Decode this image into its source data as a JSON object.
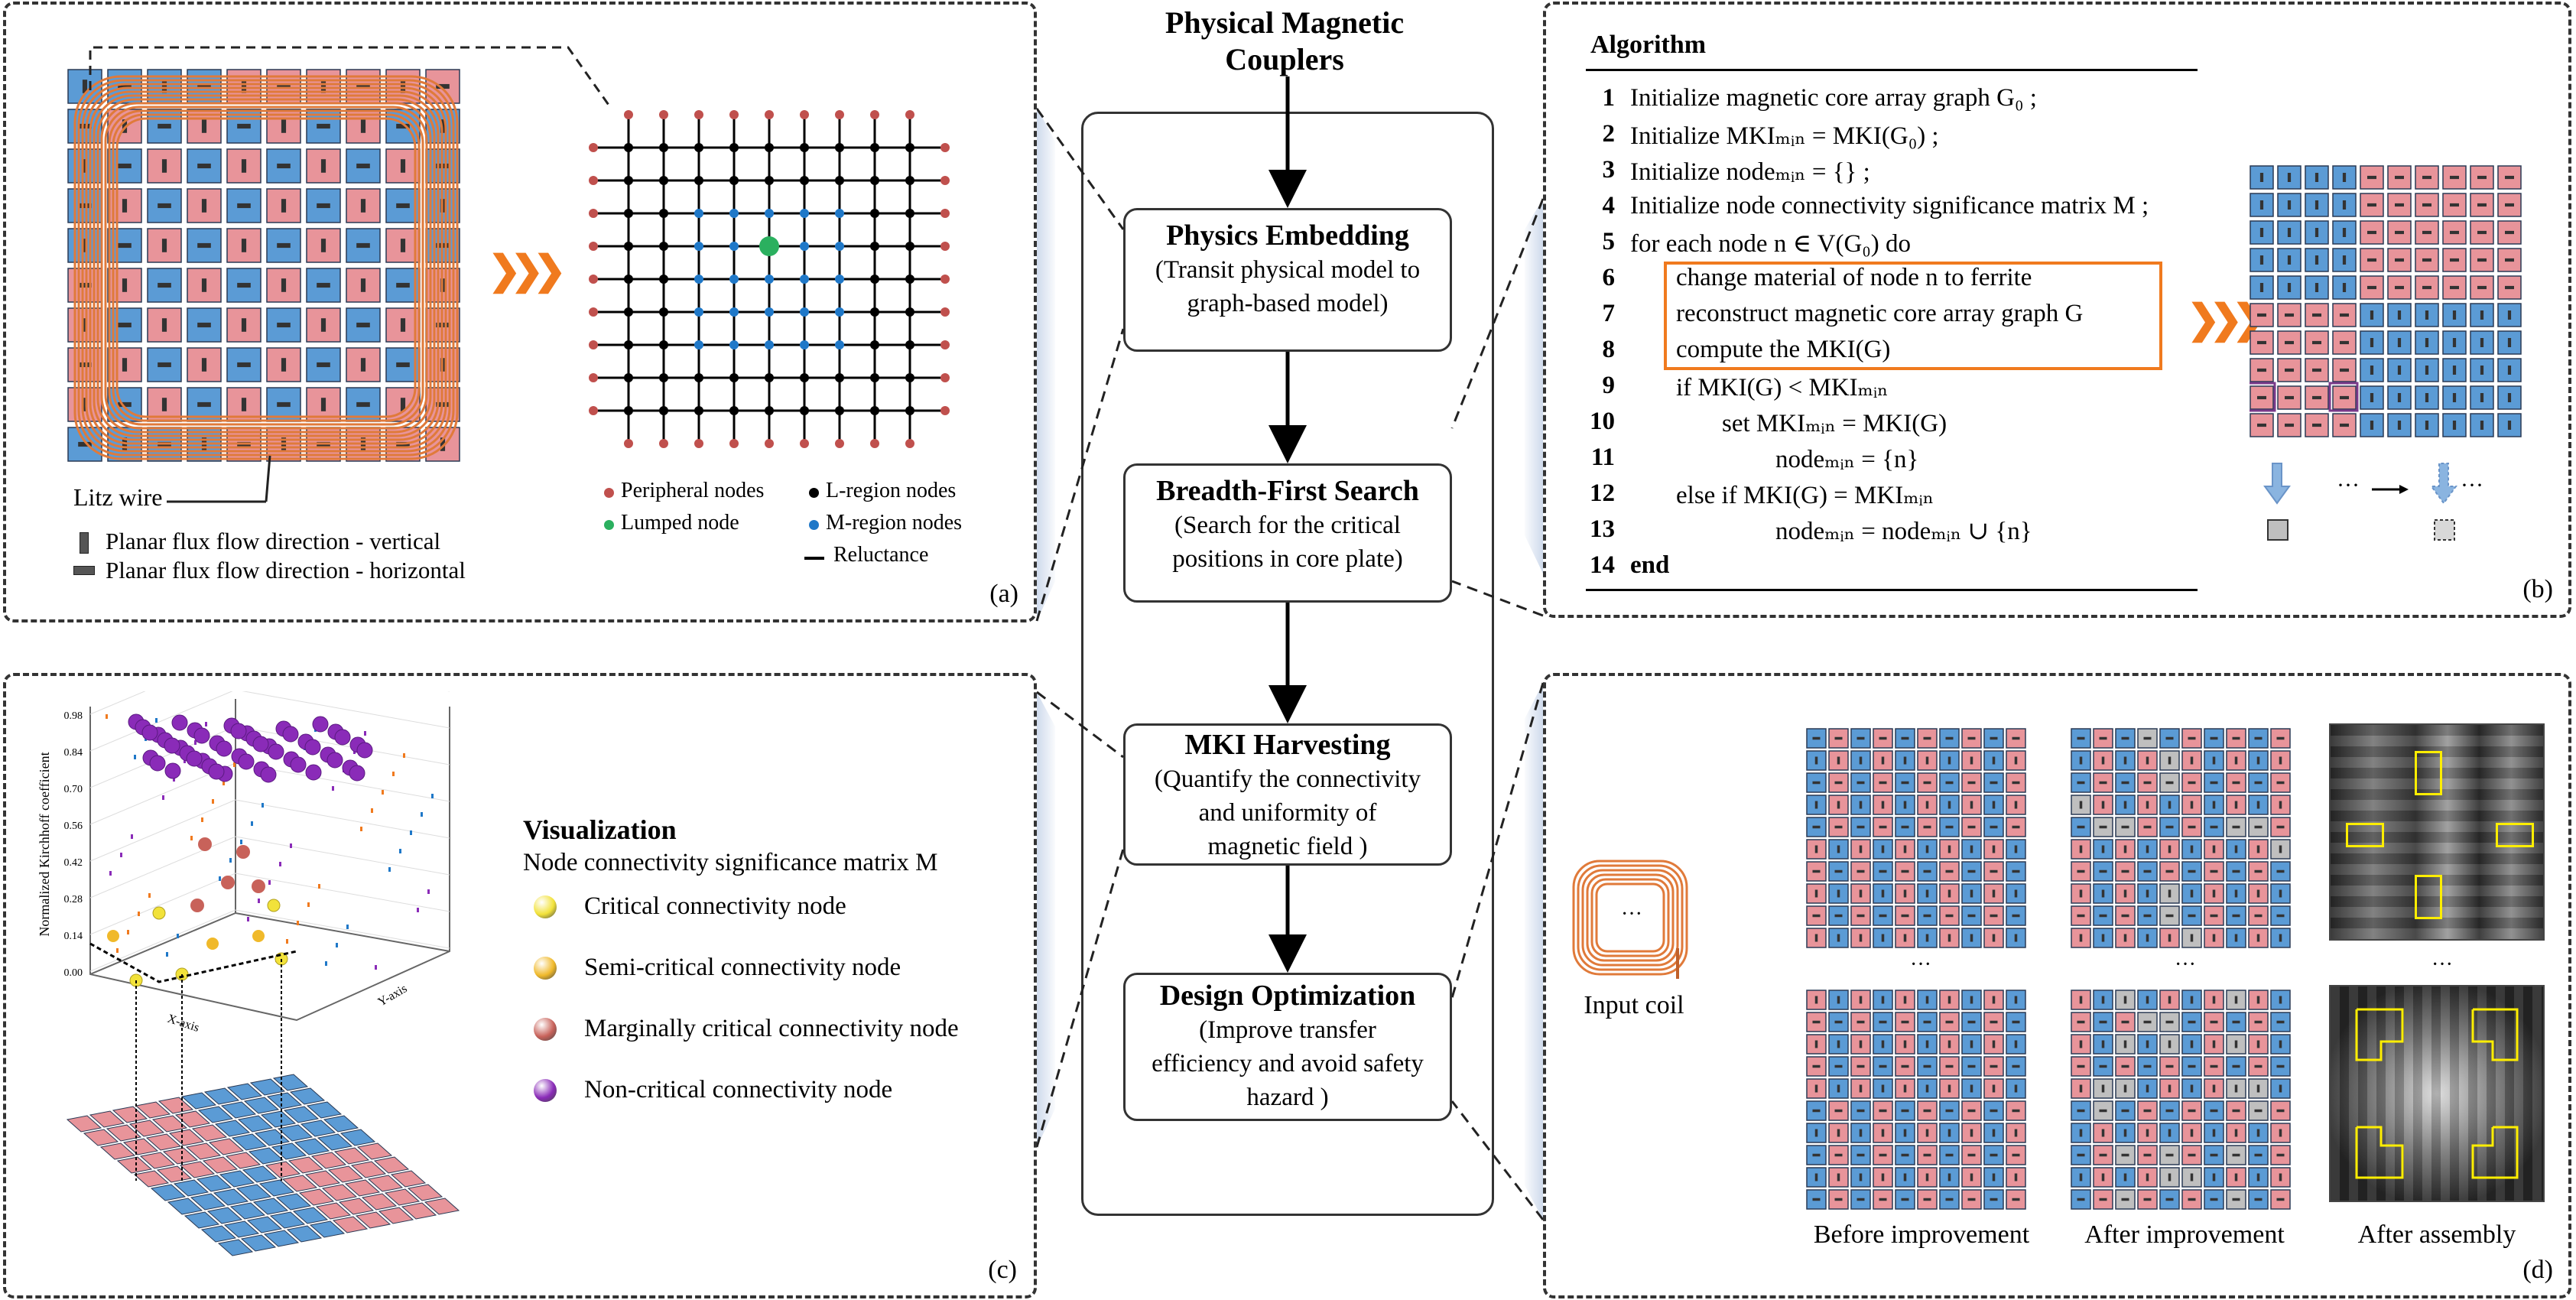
{
  "center": {
    "title_line1": "Physical Magnetic",
    "title_line2": "Couplers",
    "steps": [
      {
        "title": "Physics Embedding",
        "desc": [
          "(Transit physical model to",
          "graph-based model)"
        ]
      },
      {
        "title": "Breadth-First Search",
        "desc": [
          "(Search for the critical",
          "positions in core plate)"
        ]
      },
      {
        "title": "MKI Harvesting",
        "desc": [
          "(Quantify the connectivity",
          "and uniformity of",
          "magnetic field )"
        ]
      },
      {
        "title": "Design Optimization",
        "desc": [
          "(Improve transfer",
          "efficiency and avoid safety",
          "hazard )"
        ]
      }
    ]
  },
  "panel_a": {
    "label": "(a)",
    "litz_wire": "Litz wire",
    "flux_vertical": "Planar flux flow direction - vertical",
    "flux_horizontal": "Planar flux flow direction - horizontal",
    "legend": {
      "peripheral": "Peripheral nodes",
      "lumped": "Lumped node",
      "l_region": "L-region nodes",
      "m_region": "M-region nodes",
      "reluctance": "Reluctance"
    }
  },
  "panel_b": {
    "label": "(b)",
    "heading": "Algorithm",
    "line_numbers": [
      "1",
      "2",
      "3",
      "4",
      "5",
      "6",
      "7",
      "8",
      "9",
      "10",
      "11",
      "12",
      "13",
      "14"
    ],
    "lines": {
      "l1": "Initialize magnetic core array graph G₀ ;",
      "l2": "Initialize MKIₘᵢₙ = MKI(G₀) ;",
      "l3": "Initialize nodeₘᵢₙ = {} ;",
      "l4": "Initialize node connectivity significance matrix M ;",
      "l5": "for each node n ∈ V(G₀) do",
      "l6": "change material of node n to ferrite",
      "l7": "reconstruct magnetic core array graph G",
      "l8": "compute the MKI(G)",
      "l9": "if MKI(G) < MKIₘᵢₙ",
      "l10": "set MKIₘᵢₙ = MKI(G)",
      "l11": "nodeₘᵢₙ = {n}",
      "l12": "else if MKI(G) = MKIₘᵢₙ",
      "l13": "nodeₘᵢₙ = nodeₘᵢₙ ∪ {n}",
      "l14": "end"
    },
    "ellipsis": "···"
  },
  "panel_c": {
    "label": "(c)",
    "heading": "Visualization",
    "subheading": "Node connectivity significance matrix M",
    "axis_z": "Normalized Kirchhoff coefficient",
    "axis_x": "X-axis",
    "axis_y": "Y-axis",
    "z_ticks": [
      "0.98",
      "0.84",
      "0.70",
      "0.56",
      "0.42",
      "0.28",
      "0.14",
      "0.00"
    ],
    "legend": [
      {
        "label": "Critical connectivity node",
        "color": "#f2e23a"
      },
      {
        "label": "Semi-critical connectivity node",
        "color": "#f0b92a"
      },
      {
        "label": "Marginally critical connectivity node",
        "color": "#c8625a"
      },
      {
        "label": "Non-critical connectivity node",
        "color": "#8a2bb8"
      }
    ]
  },
  "panel_d": {
    "label": "(d)",
    "input_coil": "Input coil",
    "before": "Before improvement",
    "after": "After improvement",
    "assembly": "After assembly",
    "ellipsis": "···"
  },
  "colors": {
    "blue_cell": "#5b9bd5",
    "red_cell": "#e8949a",
    "gray_cell": "#bfbfbf",
    "coil": "#e07a3a",
    "arrow_orange": "#f07a1e",
    "highlight_box": "#f07a1e"
  }
}
